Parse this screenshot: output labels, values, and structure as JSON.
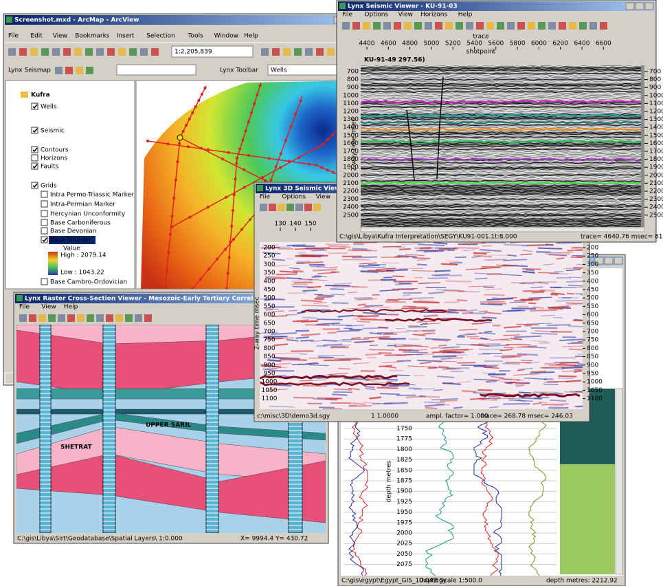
{
  "arcmap": {
    "title": "Screenshot.mxd - ArcMap - ArcView",
    "menu": [
      "File",
      "Edit",
      "View",
      "Bookmarks",
      "Insert",
      "Selection",
      "Tools",
      "Window",
      "Help"
    ],
    "scale": "1:2,205,839",
    "seismap": "Lynx Seismap",
    "lynx_toolbar": "Lynx Toolbar",
    "layer": "Wells",
    "toc": [
      {
        "label": "Kufra"
      },
      {
        "label": "Wells",
        "checked": true
      },
      {
        "label": "Seismic",
        "checked": true
      },
      {
        "label": "Contours",
        "checked": true
      },
      {
        "label": "Horizons",
        "checked": false
      },
      {
        "label": "Faults",
        "checked": true
      },
      {
        "label": "Grids",
        "checked": true
      },
      {
        "label": "Intra Permo-Triassic Marker",
        "checked": false
      },
      {
        "label": "Intra-Permian Marker",
        "checked": false
      },
      {
        "label": "Hercynian Unconformity",
        "checked": false
      },
      {
        "label": "Base Carboniferous",
        "checked": false
      },
      {
        "label": "Base Devonian",
        "checked": false
      },
      {
        "label": "Base Silurian",
        "checked": true
      },
      {
        "label": "Base Cambro-Ordovician",
        "checked": false
      }
    ],
    "legend": {
      "label": "Value",
      "high": "High : 2079.14",
      "low": "Low : 1043.22"
    }
  },
  "seismic_viewer": {
    "title": "Lynx Seismic Viewer - KU-91-03",
    "menu": [
      "File",
      "Options",
      "View",
      "Horizons",
      "Help"
    ],
    "trace_label": "trace",
    "trace_ticks": [
      4400,
      4600,
      4800,
      5000,
      5200,
      5400,
      5600,
      5800,
      6000,
      6200,
      6400,
      6600
    ],
    "shotpoint_label": "shotpoint",
    "line_label": "KU-91-49 297.56)",
    "axis_label": "2-way time msec",
    "time_ticks": [
      700,
      800,
      900,
      1000,
      1100,
      1200,
      1300,
      1400,
      1500,
      1600,
      1700,
      1800,
      1900,
      2000,
      2100,
      2200,
      2300,
      2400,
      2500
    ],
    "status": [
      "C:\\gis\\Libya\\Kufra Interpretation\\SEGY\\KU91-001.1t:8.000",
      "trace= 4640.76 msec= 811.20"
    ]
  },
  "seismic_3d": {
    "title": "Lynx 3D Seismic Viewer - De",
    "menu": [
      "File",
      "Options",
      "View",
      "3D",
      "Horiz"
    ],
    "top_ticks": [
      130,
      140,
      150
    ],
    "axis_label": "2-way time msec",
    "time_ticks": [
      200,
      250,
      300,
      350,
      400,
      450,
      500,
      550,
      600,
      650,
      700,
      750,
      800,
      850,
      900,
      950,
      1000,
      1050,
      1100
    ],
    "status": [
      "c:\\misc\\3D\\demo3d.sgy",
      "1 1.0000",
      "ampl. factor= 1.000",
      "trace= 268.78 msec= 246.03"
    ]
  },
  "cross_section": {
    "title": "Lynx Raster Cross-Section Viewer - Mesozoic-Early Tertiary Correlation G-G (east-west)",
    "menu": [
      "File",
      "View",
      "Help"
    ],
    "labels": [
      "UPPER SARIL",
      "SHETRAT"
    ],
    "status": [
      "C:\\gis\\Libya\\Sirt\\Geodatabase\\Spatial Layers\\ 1:0.000",
      "X= 9994.4 Y= 430.72"
    ]
  },
  "well_log": {
    "axis_label": "depth metres",
    "depth_ticks": [
      1750,
      1775,
      1800,
      1825,
      1850,
      1875,
      1900,
      1925,
      1950,
      1975,
      2000,
      2025,
      2050,
      2075
    ],
    "status": [
      "C:\\gis\\egypt\\Egypt_GIS_10.04\\Egy",
      "Depth Scale 1:500.0",
      "depth metres: 2212.92"
    ]
  }
}
